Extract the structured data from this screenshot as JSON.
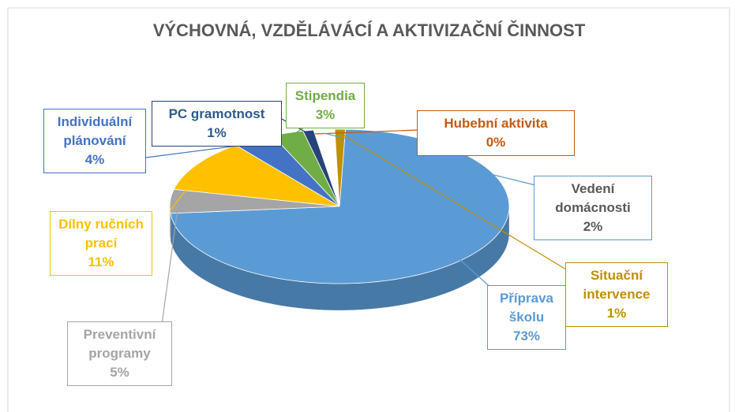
{
  "chart_data": {
    "type": "pie3d",
    "title": "VÝCHOVNÁ, VZDĚLÁVÁCÍ A AKTIVIZAČNÍ ČINNOST",
    "categories": [
      "Příprava školu",
      "Preventivní programy",
      "Dílny ručních prací",
      "Individuální plánování",
      "Stipendia",
      "PC gramotnost",
      "Hubební aktivita",
      "Vedení domácnosti",
      "Situační intervence"
    ],
    "values": [
      73,
      5,
      11,
      4,
      3,
      1,
      0,
      2,
      1
    ],
    "value_labels": [
      "73%",
      "5%",
      "11%",
      "4%",
      "3%",
      "1%",
      "0%",
      "2%",
      "1%"
    ],
    "colors": [
      "#5b9bd5",
      "#a5a5a5",
      "#ffc000",
      "#4472c4",
      "#70ad47",
      "#264478",
      "#c55a11",
      "#ffffff",
      "#bf9000"
    ],
    "label_colors": [
      "#5b9bd5",
      "#a5a5a5",
      "#ffc000",
      "#4472c4",
      "#70ad47",
      "#2e5a8a",
      "#c55a11",
      "#595959",
      "#bf9000"
    ]
  }
}
